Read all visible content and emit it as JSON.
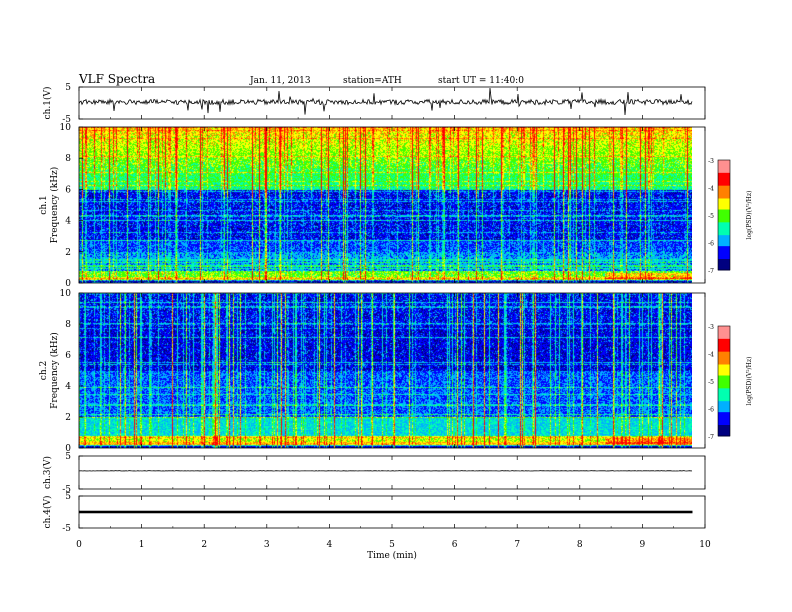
{
  "header": {
    "title": "VLF  Spectra",
    "date": "Jan. 11, 2013",
    "station": "station=ATH",
    "start": "start  UT  =   11:40:0"
  },
  "colors": {
    "colormap": [
      "#000080",
      "#0000ff",
      "#00b0ff",
      "#00ffb0",
      "#40ff00",
      "#ffff00",
      "#ff8000",
      "#ff0000",
      "#ff9090",
      "#ffffff"
    ],
    "trace": "#000000"
  },
  "chart_data": [
    {
      "type": "line",
      "panel": "ch1",
      "ylabel": "ch.1(V)",
      "ylim": [
        -5,
        5
      ],
      "yticks": [
        "5",
        "-5"
      ],
      "xlim": [
        0,
        10
      ],
      "description_level": 0.3,
      "noise_amplitude": 0.8
    },
    {
      "type": "heatmap",
      "panel": "ch1-spectrum",
      "ylabel": [
        "ch.1",
        "Frequency  (kHz)"
      ],
      "ylim": [
        0,
        10
      ],
      "yticks": [
        "0",
        "2",
        "4",
        "6",
        "8",
        "10"
      ],
      "xlim": [
        0,
        9.8
      ],
      "colorbar": {
        "label": "log(PSD)(V²/Hz)",
        "ticks": [
          "-3",
          "-4",
          "-5",
          "-6",
          "-7"
        ],
        "range": [
          -7,
          -3
        ]
      }
    },
    {
      "type": "heatmap",
      "panel": "ch2-spectrum",
      "ylabel": [
        "ch.2",
        "Frequency  (kHz)"
      ],
      "ylim": [
        0,
        10
      ],
      "yticks": [
        "0",
        "2",
        "4",
        "6",
        "8",
        "10"
      ],
      "xlim": [
        0,
        9.8
      ],
      "colorbar": {
        "label": "log(PSD)(V²/Hz)",
        "ticks": [
          "-3",
          "-4",
          "-5",
          "-6",
          "-7"
        ],
        "range": [
          -7,
          -3
        ]
      }
    },
    {
      "type": "line",
      "panel": "ch3",
      "ylabel": "ch.3(V)",
      "ylim": [
        -5,
        5
      ],
      "yticks": [
        "5",
        "-5"
      ],
      "xlim": [
        0,
        10
      ],
      "level": 0.5
    },
    {
      "type": "line",
      "panel": "ch4",
      "ylabel": "ch.4(V)",
      "ylim": [
        -5,
        5
      ],
      "yticks": [
        "5",
        "-5"
      ],
      "xlim": [
        0,
        10
      ],
      "level": 0.0
    }
  ],
  "xaxis": {
    "label": "Time  (min)",
    "ticks": [
      "0",
      "1",
      "2",
      "3",
      "4",
      "5",
      "6",
      "7",
      "8",
      "9",
      "10"
    ],
    "range": [
      0,
      10
    ]
  }
}
